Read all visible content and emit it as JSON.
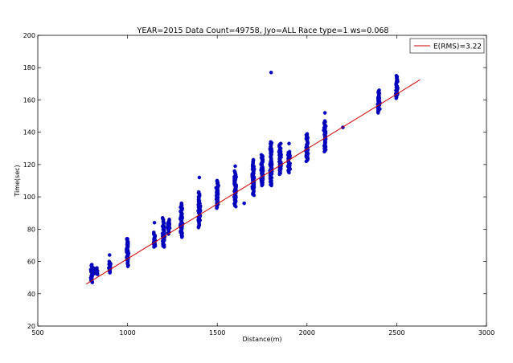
{
  "chart_data": {
    "type": "scatter",
    "title": "YEAR=2015 Data Count=49758, Jyo=ALL Race type=1 ws=0.068",
    "xlabel": "Distance(m)",
    "ylabel": "Time(sec)",
    "xlim": [
      500,
      3000
    ],
    "ylim": [
      20,
      200
    ],
    "xticks": [
      500,
      1000,
      1500,
      2000,
      2500,
      3000
    ],
    "yticks": [
      20,
      40,
      60,
      80,
      100,
      120,
      140,
      160,
      180,
      200
    ],
    "grid": false,
    "legend_position": "top-right",
    "point_color": "#0000cc",
    "fit_color": "#cc0000",
    "series": [
      {
        "kind": "fit-line",
        "name": "E(RMS)=3.22",
        "x": [
          770,
          2630
        ],
        "y": [
          46.0,
          172.5
        ]
      },
      {
        "kind": "scatter-ranges",
        "description": "vertical clusters of points per race distance: [distance, min_time, max_time]",
        "clusters": [
          [
            800,
            47,
            58
          ],
          [
            810,
            52,
            56
          ],
          [
            830,
            52,
            56
          ],
          [
            900,
            53,
            60
          ],
          [
            1000,
            57,
            74
          ],
          [
            1150,
            69,
            78
          ],
          [
            1200,
            69,
            87
          ],
          [
            1230,
            77,
            86
          ],
          [
            1300,
            75,
            96
          ],
          [
            1400,
            81,
            103
          ],
          [
            1500,
            93,
            110
          ],
          [
            1600,
            94,
            116
          ],
          [
            1700,
            101,
            123
          ],
          [
            1750,
            107,
            126
          ],
          [
            1800,
            107,
            134
          ],
          [
            1850,
            114,
            133
          ],
          [
            1900,
            115,
            128
          ],
          [
            2000,
            122,
            139
          ],
          [
            2100,
            128,
            147
          ],
          [
            2400,
            152,
            166
          ],
          [
            2500,
            161,
            175
          ]
        ],
        "outliers": [
          [
            800,
            58
          ],
          [
            900,
            64
          ],
          [
            1000,
            74
          ],
          [
            1150,
            84
          ],
          [
            1400,
            112
          ],
          [
            1500,
            110
          ],
          [
            1600,
            119
          ],
          [
            1650,
            96
          ],
          [
            1800,
            177
          ],
          [
            1900,
            133
          ],
          [
            2100,
            152
          ],
          [
            2200,
            143
          ]
        ]
      }
    ]
  }
}
